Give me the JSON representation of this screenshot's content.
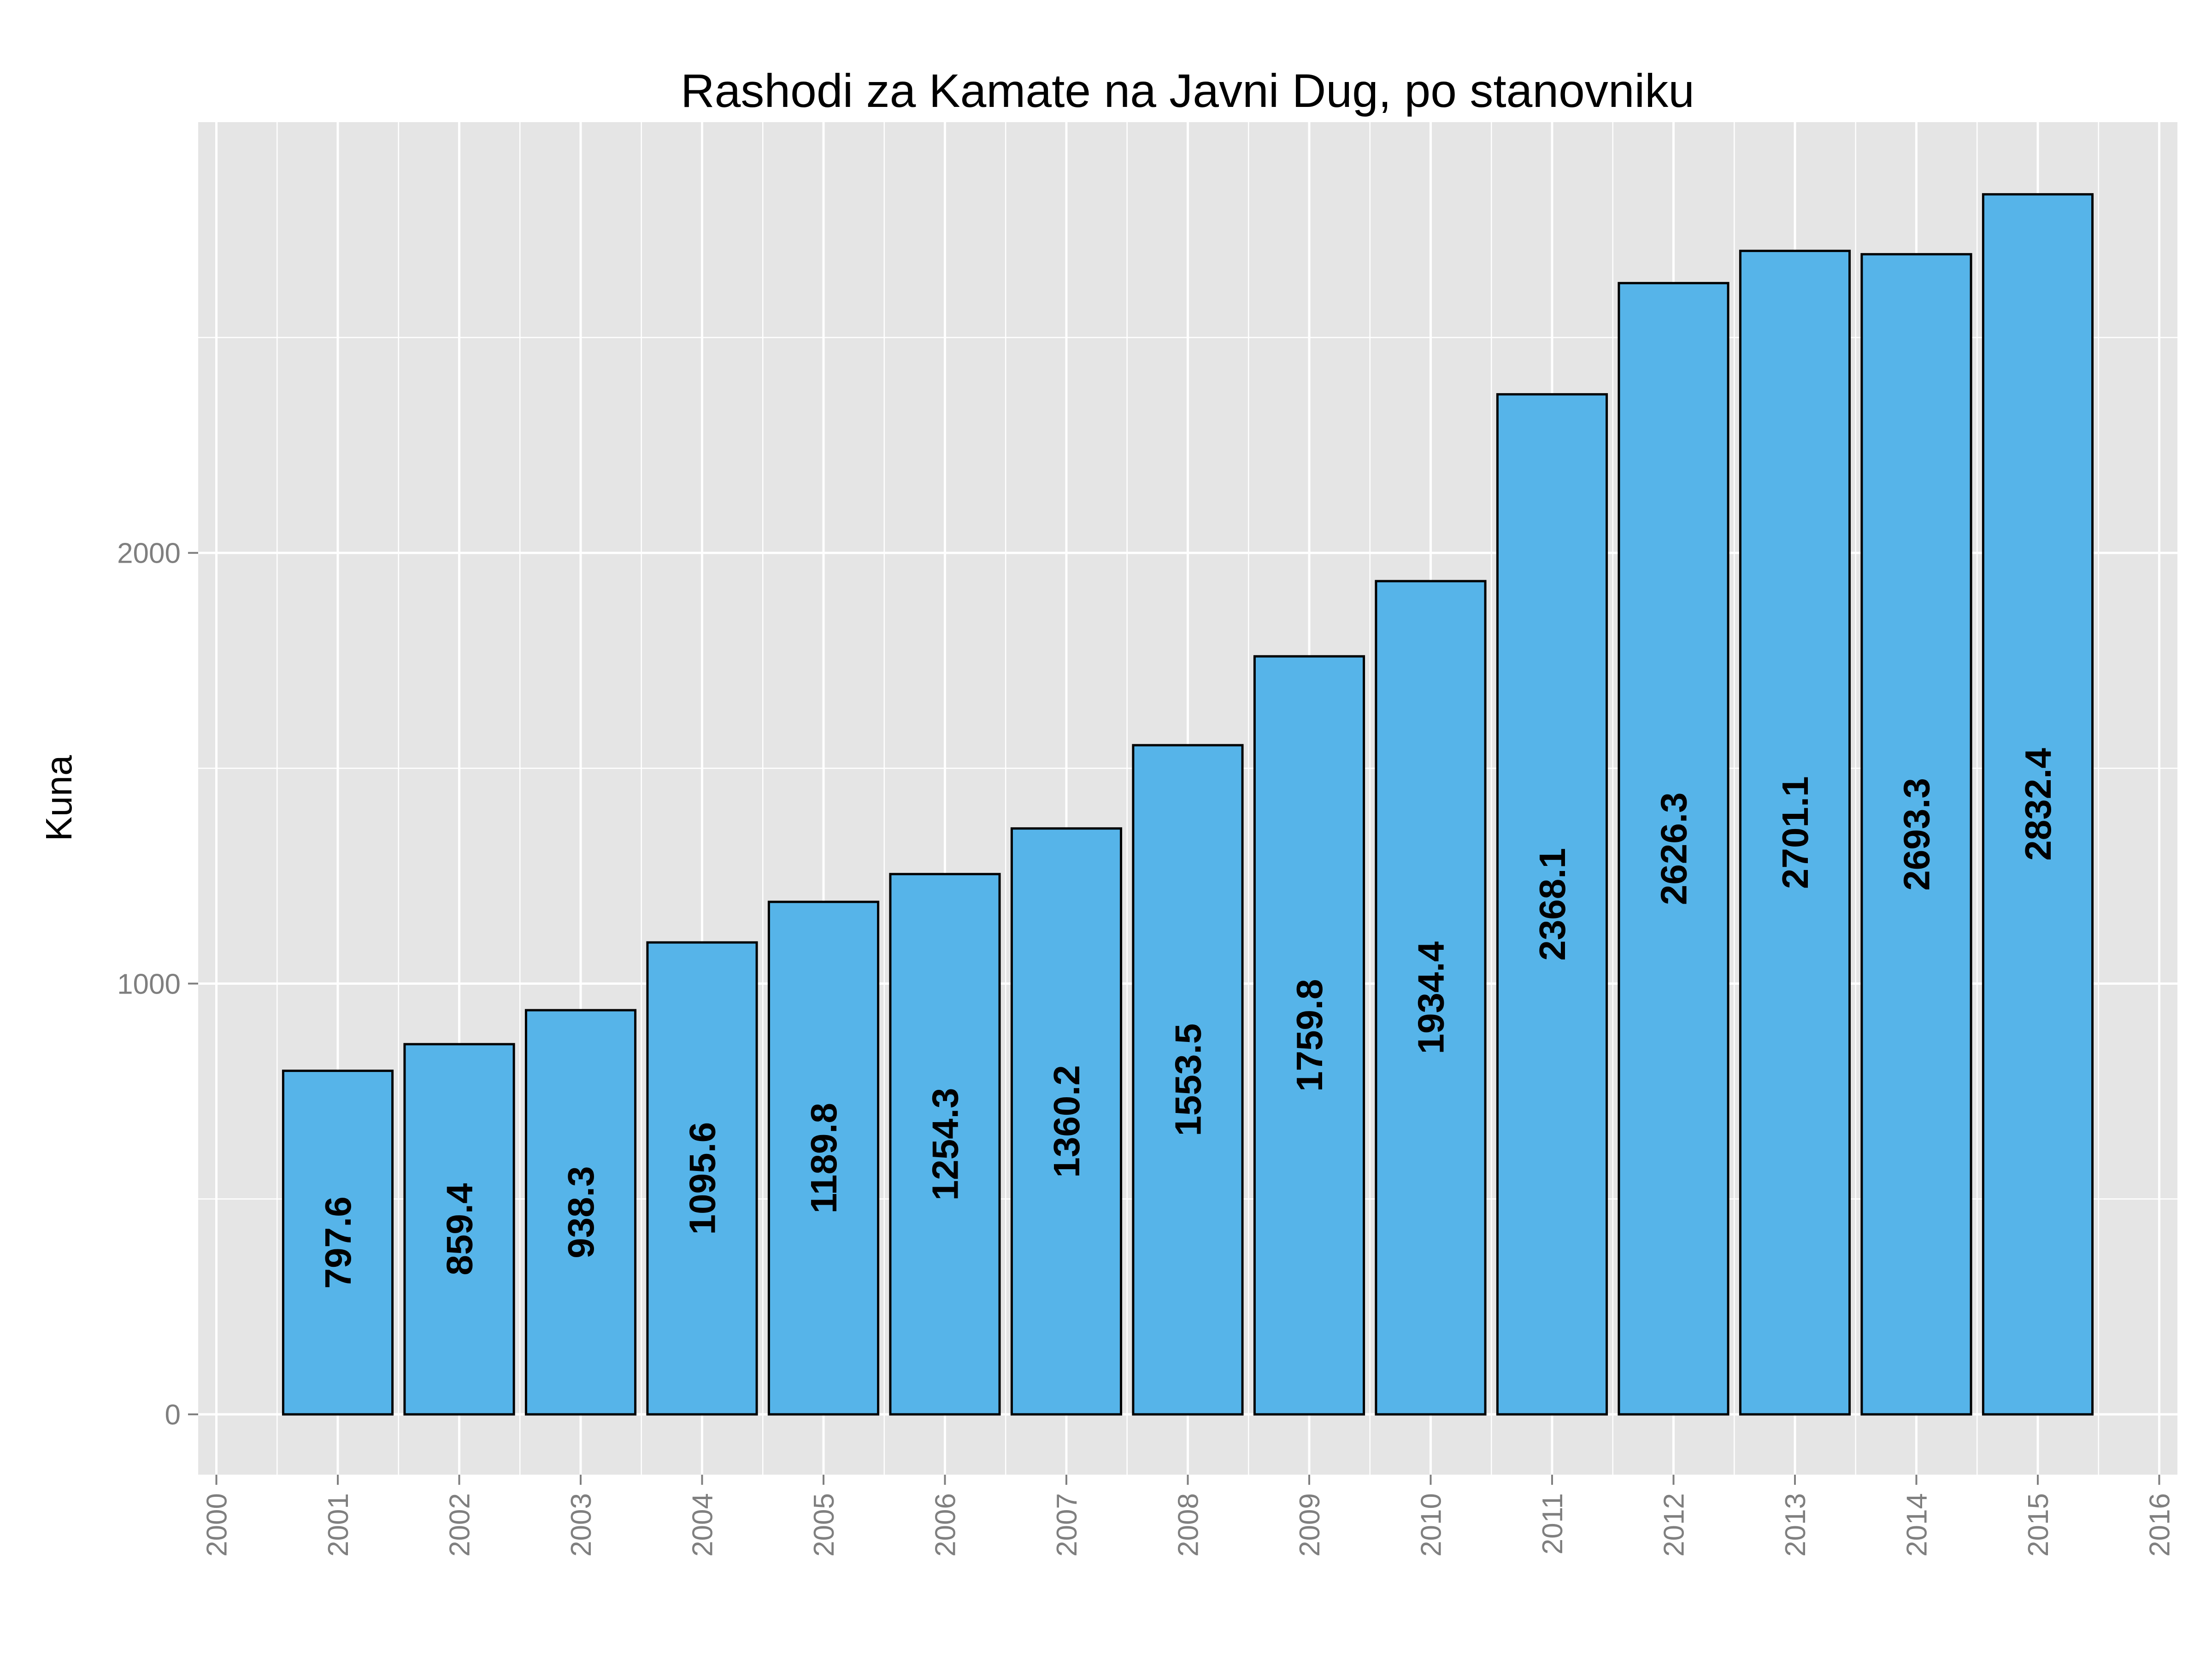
{
  "chart_data": {
    "type": "bar",
    "title": "Rashodi za Kamate na Javni Dug, po stanovniku",
    "xlabel": "",
    "ylabel": "Kuna",
    "categories": [
      "2001",
      "2002",
      "2003",
      "2004",
      "2005",
      "2006",
      "2007",
      "2008",
      "2009",
      "2010",
      "2011",
      "2012",
      "2013",
      "2014",
      "2015"
    ],
    "values": [
      797.6,
      859.4,
      938.3,
      1095.6,
      1189.8,
      1254.3,
      1360.2,
      1553.5,
      1759.8,
      1934.4,
      2368.1,
      2626.3,
      2701.1,
      2693.3,
      2832.4
    ],
    "value_labels": [
      "797.6",
      "859.4",
      "938.3",
      "1095.6",
      "1189.8",
      "1254.3",
      "1360.2",
      "1553.5",
      "1759.8",
      "1934.4",
      "2368.1",
      "2626.3",
      "2701.1",
      "2693.3",
      "2832.4"
    ],
    "x_ticks": [
      "2000",
      "2001",
      "2002",
      "2003",
      "2004",
      "2005",
      "2006",
      "2007",
      "2008",
      "2009",
      "2010",
      "2011",
      "2012",
      "2013",
      "2014",
      "2015",
      "2016"
    ],
    "y_ticks": [
      "0",
      "1000",
      "2000"
    ],
    "xlim": [
      1999.85,
      2016.15
    ],
    "ylim": [
      -140,
      3000
    ],
    "grid": true,
    "colors": {
      "bar_fill": "#56B4E9",
      "bar_stroke": "#000000",
      "panel": "#E5E5E5",
      "grid": "#FFFFFF"
    }
  }
}
